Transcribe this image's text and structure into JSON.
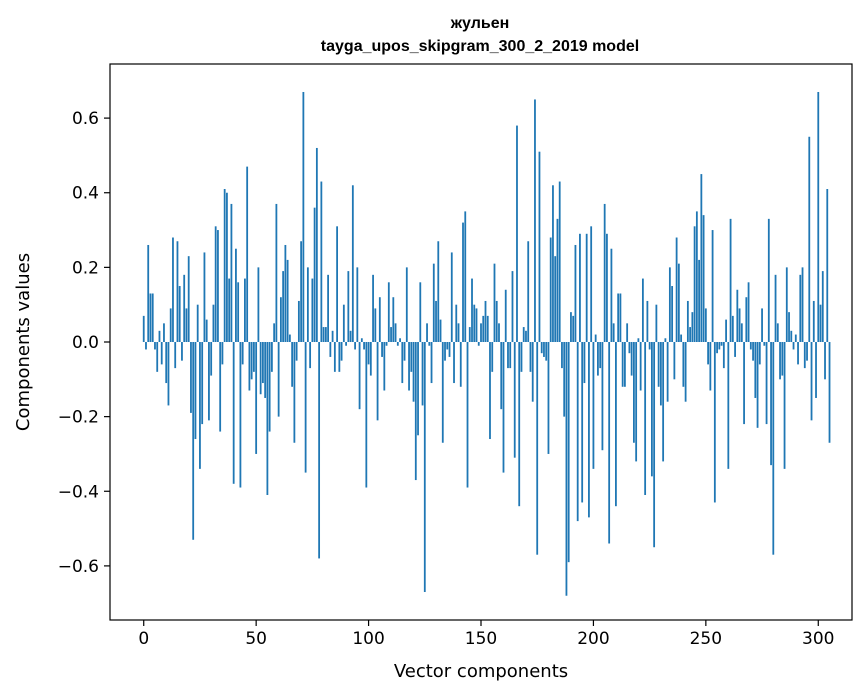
{
  "chart_data": {
    "type": "bar",
    "title": "жульен",
    "subtitle": "tayga_upos_skipgram_300_2_2019 model",
    "xlabel": "Vector components",
    "ylabel": "Components values",
    "xlim": [
      -15,
      315
    ],
    "ylim": [
      -0.745,
      0.745
    ],
    "xticks": [
      0,
      50,
      100,
      150,
      200,
      250,
      300
    ],
    "yticks": [
      -0.6,
      -0.4,
      -0.2,
      0.0,
      0.2,
      0.4,
      0.6
    ],
    "xtick_labels": [
      "0",
      "50",
      "100",
      "150",
      "200",
      "250",
      "300"
    ],
    "ytick_labels": [
      "−0.6",
      "−0.4",
      "−0.2",
      "0.0",
      "0.2",
      "0.4",
      "0.6"
    ],
    "bar_color": "#1f77b4",
    "values": [
      0.07,
      -0.02,
      0.26,
      0.13,
      0.13,
      -0.02,
      -0.08,
      0.03,
      -0.06,
      0.05,
      -0.11,
      -0.17,
      0.09,
      0.28,
      -0.07,
      0.27,
      0.15,
      -0.05,
      0.18,
      0.09,
      0.23,
      -0.19,
      -0.53,
      -0.26,
      0.1,
      -0.34,
      -0.22,
      0.24,
      0.06,
      -0.21,
      -0.09,
      0.1,
      0.31,
      0.3,
      -0.24,
      -0.06,
      0.41,
      0.4,
      0.17,
      0.37,
      -0.38,
      0.25,
      0.16,
      -0.39,
      -0.06,
      0.17,
      0.47,
      -0.13,
      -0.1,
      -0.08,
      -0.3,
      0.2,
      -0.14,
      -0.11,
      -0.15,
      -0.41,
      -0.24,
      -0.08,
      0.05,
      0.37,
      -0.2,
      0.12,
      0.19,
      0.26,
      0.22,
      0.02,
      -0.12,
      -0.27,
      -0.05,
      0.11,
      0.27,
      0.67,
      -0.35,
      0.2,
      -0.07,
      0.17,
      0.36,
      0.52,
      -0.58,
      0.43,
      0.04,
      0.04,
      0.18,
      -0.04,
      0.03,
      -0.08,
      0.31,
      -0.08,
      -0.05,
      0.1,
      -0.01,
      0.19,
      0.03,
      0.42,
      -0.02,
      0.2,
      -0.18,
      0.01,
      -0.02,
      -0.39,
      -0.06,
      -0.09,
      0.18,
      0.09,
      -0.21,
      0.12,
      -0.04,
      -0.13,
      -0.01,
      0.16,
      0.04,
      0.12,
      0.05,
      -0.01,
      0.01,
      -0.11,
      -0.05,
      0.2,
      -0.13,
      -0.08,
      -0.16,
      -0.37,
      -0.25,
      0.16,
      -0.17,
      -0.67,
      0.05,
      -0.01,
      -0.11,
      0.21,
      0.11,
      0.27,
      0.06,
      -0.27,
      -0.05,
      -0.02,
      -0.04,
      0.24,
      -0.11,
      0.1,
      0.05,
      -0.12,
      0.32,
      0.35,
      -0.39,
      0.04,
      0.17,
      0.1,
      0.09,
      -0.01,
      0.05,
      0.07,
      0.11,
      0.07,
      -0.26,
      -0.08,
      0.21,
      0.11,
      0.05,
      -0.18,
      -0.35,
      0.14,
      -0.07,
      -0.07,
      0.19,
      -0.31,
      0.58,
      -0.44,
      -0.08,
      0.04,
      0.03,
      0.27,
      -0.08,
      -0.16,
      0.65,
      -0.57,
      0.51,
      -0.03,
      -0.04,
      -0.05,
      -0.3,
      0.28,
      0.42,
      0.23,
      0.33,
      0.43,
      -0.07,
      -0.2,
      -0.68,
      -0.59,
      0.08,
      0.07,
      0.26,
      -0.48,
      0.29,
      -0.43,
      -0.11,
      0.29,
      -0.47,
      0.31,
      -0.34,
      0.02,
      -0.09,
      -0.07,
      -0.29,
      0.37,
      0.29,
      -0.54,
      0.25,
      0.05,
      -0.44,
      0.13,
      0.13,
      -0.12,
      -0.12,
      0.05,
      -0.03,
      -0.09,
      -0.27,
      -0.32,
      0.01,
      -0.13,
      0.17,
      -0.41,
      0.11,
      -0.02,
      -0.36,
      -0.55,
      0.1,
      -0.12,
      -0.17,
      -0.32,
      0.01,
      -0.16,
      0.2,
      0.15,
      -0.1,
      0.28,
      0.21,
      0.02,
      -0.12,
      -0.16,
      0.11,
      0.04,
      0.08,
      0.31,
      0.35,
      0.22,
      0.45,
      0.34,
      0.09,
      -0.06,
      -0.13,
      0.3,
      -0.43,
      -0.03,
      -0.02,
      -0.01,
      -0.07,
      0.06,
      -0.34,
      0.33,
      0.07,
      -0.04,
      0.14,
      0.09,
      0.05,
      -0.22,
      0.12,
      0.16,
      -0.02,
      -0.05,
      -0.15,
      -0.23,
      -0.06,
      0.09,
      -0.01,
      -0.22,
      0.33,
      -0.33,
      -0.57,
      0.18,
      0.05,
      -0.1,
      -0.09,
      -0.34,
      0.2,
      0.08,
      0.03,
      -0.02,
      0.02,
      -0.06,
      0.18,
      0.2,
      -0.07,
      -0.05,
      0.55,
      -0.21,
      0.11,
      -0.15,
      0.67,
      0.1,
      0.19,
      -0.1,
      0.41,
      -0.27
    ]
  }
}
